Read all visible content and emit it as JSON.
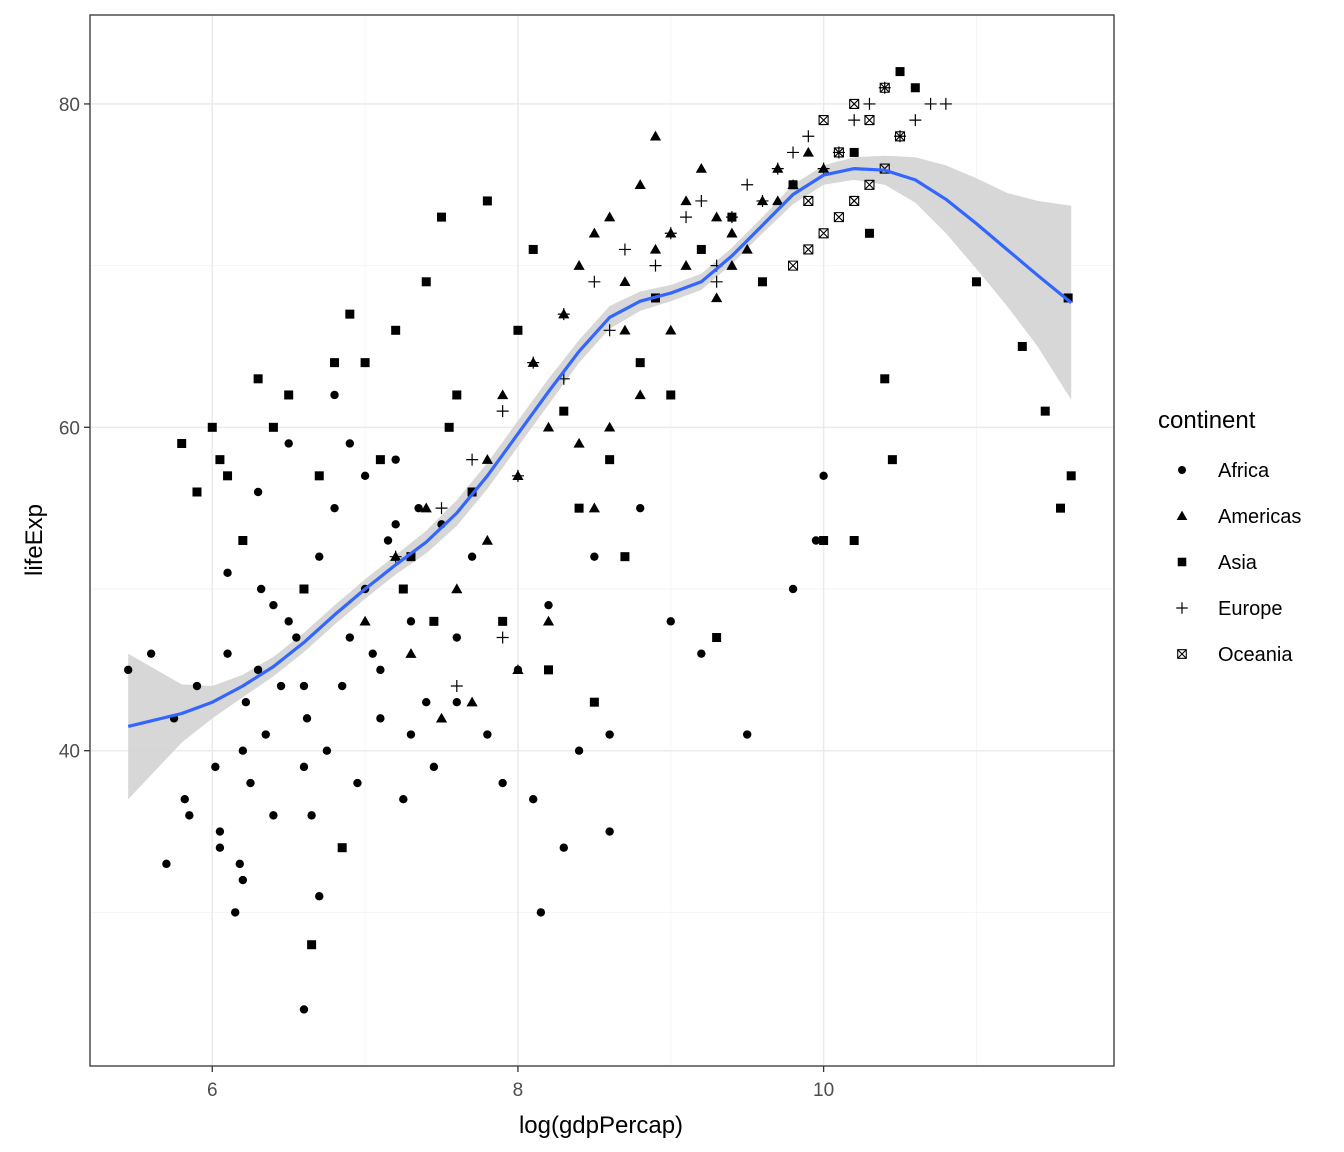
{
  "chart_data": {
    "type": "scatter",
    "title": "",
    "xlabel": "log(gdpPercap)",
    "ylabel": "lifeExp",
    "xlim": [
      5.2,
      11.9
    ],
    "ylim": [
      20.5,
      85.5
    ],
    "x_ticks": [
      6,
      8,
      10
    ],
    "y_ticks": [
      40,
      60,
      80
    ],
    "grid": true,
    "colors": {
      "points": "#000000",
      "smooth_line": "#3366FF",
      "confidence_band": "#d3d3d3",
      "grid_major": "#ebebeb",
      "grid_minor": "#f5f5f5",
      "panel_border": "#333333"
    },
    "legend": {
      "title": "continent",
      "position": "right",
      "entries": [
        {
          "label": "Africa",
          "shape": "circle"
        },
        {
          "label": "Americas",
          "shape": "triangle"
        },
        {
          "label": "Asia",
          "shape": "square"
        },
        {
          "label": "Europe",
          "shape": "plus"
        },
        {
          "label": "Oceania",
          "shape": "square-x"
        }
      ]
    },
    "smooth": {
      "x": [
        5.45,
        5.8,
        6.0,
        6.2,
        6.4,
        6.6,
        6.8,
        7.0,
        7.2,
        7.4,
        7.6,
        7.8,
        8.0,
        8.2,
        8.4,
        8.6,
        8.8,
        9.0,
        9.2,
        9.4,
        9.6,
        9.8,
        10.0,
        10.2,
        10.4,
        10.6,
        10.8,
        11.0,
        11.2,
        11.4,
        11.62
      ],
      "y": [
        41.5,
        42.3,
        43.0,
        44.0,
        45.2,
        46.7,
        48.4,
        50.0,
        51.5,
        52.9,
        54.7,
        57.0,
        59.6,
        62.2,
        64.7,
        66.8,
        67.8,
        68.3,
        69.0,
        70.6,
        72.5,
        74.4,
        75.6,
        76.0,
        75.9,
        75.3,
        74.1,
        72.6,
        71.0,
        69.4,
        67.7
      ],
      "lower": [
        37.0,
        40.5,
        42.0,
        43.3,
        44.6,
        46.1,
        47.8,
        49.4,
        50.9,
        52.2,
        53.9,
        56.2,
        58.8,
        61.4,
        64.0,
        66.1,
        67.2,
        67.8,
        68.5,
        70.1,
        72.0,
        73.8,
        75.0,
        75.3,
        75.0,
        73.9,
        72.0,
        69.8,
        67.5,
        65.0,
        61.7
      ],
      "upper": [
        46.0,
        44.1,
        44.0,
        44.7,
        45.8,
        47.3,
        49.0,
        50.6,
        52.1,
        53.6,
        55.5,
        57.8,
        60.4,
        63.0,
        65.4,
        67.5,
        68.4,
        68.8,
        69.5,
        71.1,
        73.0,
        75.0,
        76.2,
        76.7,
        76.8,
        76.7,
        76.2,
        75.4,
        74.5,
        74.0,
        73.7
      ]
    },
    "series": [
      {
        "name": "Africa",
        "shape": "circle",
        "x": [
          5.45,
          5.6,
          5.7,
          5.75,
          5.82,
          5.9,
          6.02,
          6.05,
          6.1,
          6.15,
          6.18,
          6.2,
          6.22,
          6.25,
          6.3,
          6.32,
          6.35,
          6.4,
          6.45,
          6.5,
          6.55,
          6.6,
          6.62,
          6.65,
          6.7,
          6.75,
          6.8,
          6.85,
          6.9,
          6.95,
          7.0,
          7.05,
          7.1,
          7.15,
          7.2,
          7.25,
          7.3,
          7.35,
          7.4,
          7.5,
          7.6,
          7.7,
          7.8,
          7.9,
          8.0,
          8.1,
          8.2,
          8.3,
          8.4,
          8.5,
          8.6,
          8.8,
          9.0,
          9.2,
          9.5,
          9.8,
          9.95,
          10.0,
          6.1,
          6.3,
          6.5,
          6.8,
          7.0,
          7.2,
          6.4,
          6.6,
          6.9,
          7.1,
          7.3,
          6.2,
          6.7,
          5.85,
          6.05,
          7.6,
          8.15,
          6.6,
          7.45,
          8.6
        ],
        "y": [
          45,
          46,
          33,
          42,
          37,
          44,
          39,
          35,
          46,
          30,
          33,
          40,
          43,
          38,
          45,
          50,
          41,
          36,
          44,
          48,
          47,
          39,
          42,
          36,
          52,
          40,
          55,
          44,
          59,
          38,
          50,
          46,
          42,
          53,
          58,
          37,
          48,
          55,
          43,
          54,
          47,
          52,
          41,
          38,
          45,
          37,
          49,
          34,
          40,
          52,
          35,
          55,
          48,
          46,
          41,
          50,
          53,
          57,
          51,
          56,
          59,
          62,
          57,
          54,
          49,
          44,
          47,
          45,
          41,
          32,
          31,
          36,
          34,
          43,
          30,
          24,
          39,
          41
        ]
      },
      {
        "name": "Americas",
        "shape": "triangle",
        "x": [
          7.0,
          7.2,
          7.4,
          7.6,
          7.7,
          7.8,
          7.9,
          8.0,
          8.1,
          8.2,
          8.3,
          8.4,
          8.5,
          8.6,
          8.7,
          8.8,
          8.9,
          9.0,
          9.1,
          9.2,
          9.3,
          9.4,
          9.5,
          9.6,
          9.7,
          9.8,
          9.9,
          10.0,
          8.2,
          8.5,
          8.8,
          9.0,
          9.3,
          8.0,
          7.8,
          7.5,
          8.4,
          8.7,
          9.1,
          9.4,
          9.7,
          7.3,
          8.9,
          8.6
        ],
        "y": [
          48,
          52,
          55,
          50,
          43,
          58,
          62,
          57,
          64,
          60,
          67,
          70,
          72,
          73,
          69,
          75,
          71,
          72,
          74,
          76,
          73,
          70,
          71,
          74,
          76,
          75,
          77,
          76,
          48,
          55,
          62,
          66,
          68,
          45,
          53,
          42,
          59,
          66,
          70,
          72,
          74,
          46,
          78,
          60
        ]
      },
      {
        "name": "Asia",
        "shape": "square",
        "x": [
          5.8,
          5.9,
          6.0,
          6.05,
          6.1,
          6.2,
          6.3,
          6.4,
          6.5,
          6.6,
          6.7,
          6.8,
          6.9,
          7.0,
          7.1,
          7.2,
          7.3,
          7.4,
          7.5,
          7.6,
          7.7,
          7.8,
          7.9,
          8.0,
          8.1,
          8.2,
          8.3,
          8.4,
          8.5,
          8.6,
          8.7,
          8.8,
          8.9,
          9.0,
          9.2,
          9.4,
          9.6,
          9.8,
          10.0,
          10.2,
          10.3,
          10.4,
          10.5,
          10.6,
          11.0,
          11.3,
          11.45,
          11.55,
          11.62,
          11.6,
          10.45,
          10.2,
          9.3,
          7.55,
          6.65,
          6.85,
          7.25,
          7.45
        ],
        "y": [
          59,
          56,
          60,
          58,
          57,
          53,
          63,
          60,
          62,
          50,
          57,
          64,
          67,
          64,
          58,
          66,
          52,
          69,
          73,
          62,
          56,
          74,
          48,
          66,
          71,
          45,
          61,
          55,
          43,
          58,
          52,
          64,
          68,
          62,
          71,
          73,
          69,
          75,
          53,
          77,
          72,
          63,
          82,
          81,
          69,
          65,
          61,
          55,
          57,
          68,
          58,
          53,
          47,
          60,
          28,
          34,
          50,
          48
        ]
      },
      {
        "name": "Europe",
        "shape": "plus",
        "x": [
          7.2,
          7.5,
          7.7,
          7.9,
          8.1,
          8.3,
          8.5,
          8.7,
          8.9,
          9.0,
          9.1,
          9.2,
          9.3,
          9.4,
          9.5,
          9.6,
          9.7,
          9.8,
          9.9,
          10.0,
          10.1,
          10.2,
          10.3,
          10.4,
          10.5,
          10.6,
          10.7,
          10.8,
          8.0,
          8.6,
          9.3,
          7.6,
          7.9,
          8.3
        ],
        "y": [
          52,
          55,
          58,
          61,
          64,
          67,
          69,
          71,
          70,
          72,
          73,
          74,
          70,
          73,
          75,
          74,
          76,
          77,
          78,
          76,
          77,
          79,
          80,
          81,
          78,
          79,
          80,
          80,
          57,
          66,
          69,
          44,
          47,
          63
        ]
      },
      {
        "name": "Oceania",
        "shape": "square-x",
        "x": [
          9.8,
          9.9,
          10.0,
          10.1,
          10.2,
          10.3,
          10.4,
          10.5,
          10.0,
          10.2,
          10.4,
          9.9,
          10.1,
          10.3
        ],
        "y": [
          70,
          71,
          72,
          73,
          74,
          75,
          76,
          78,
          79,
          80,
          81,
          74,
          77,
          79
        ]
      }
    ]
  }
}
